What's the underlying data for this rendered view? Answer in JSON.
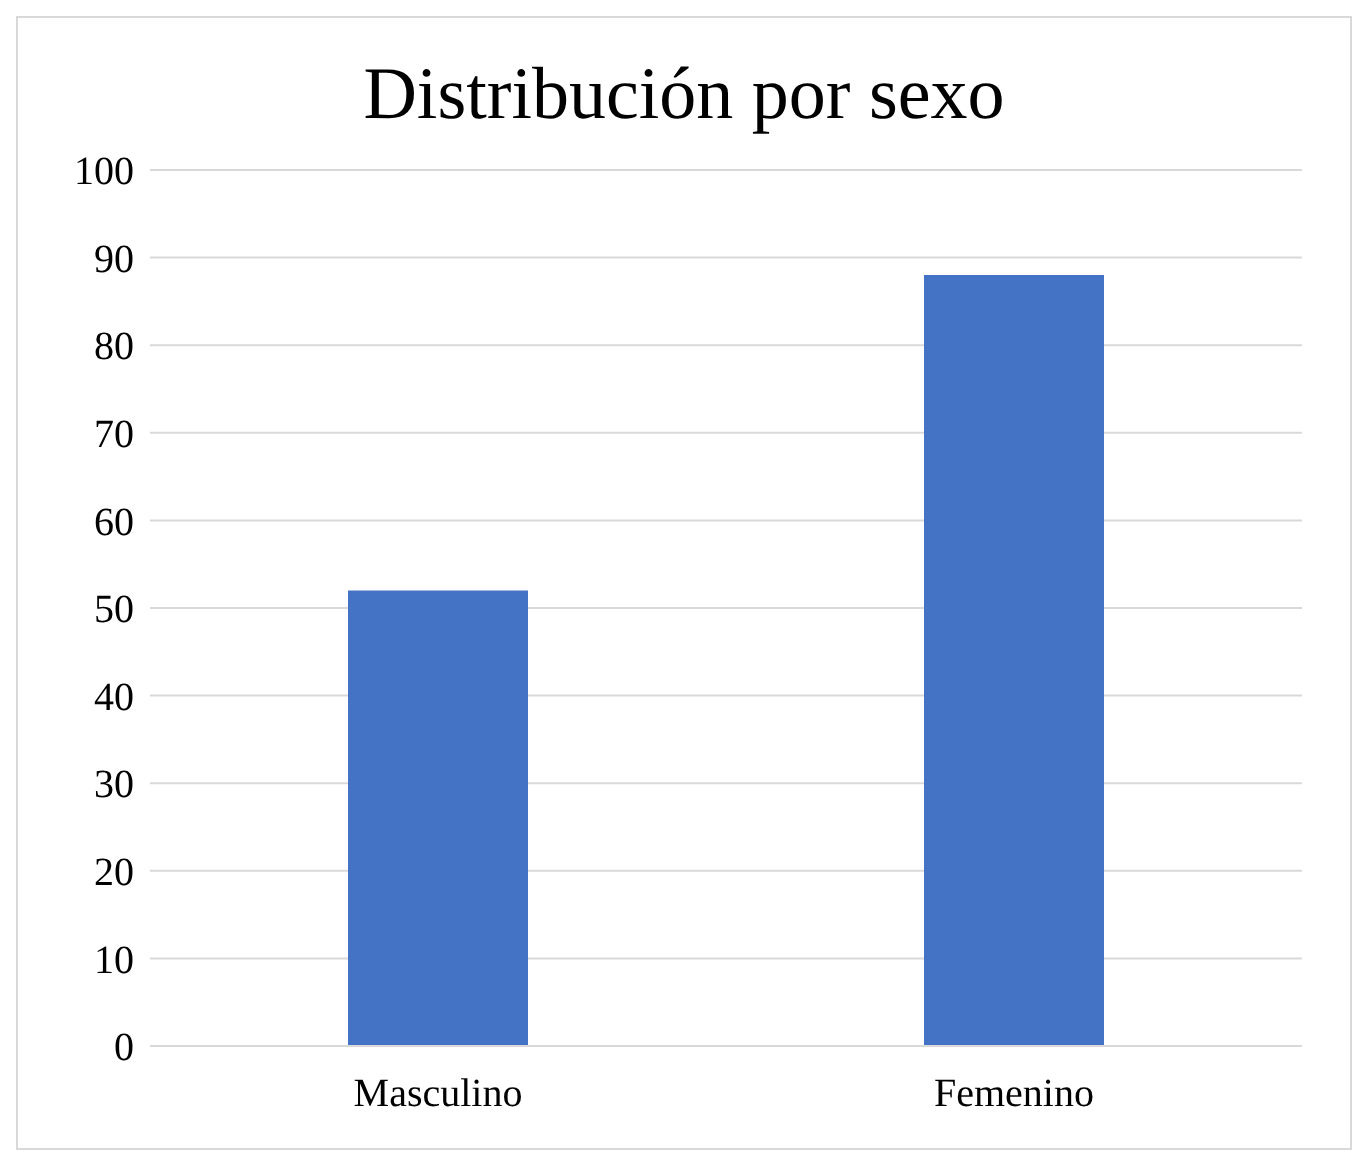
{
  "chart_data": {
    "type": "bar",
    "title": "Distribución por sexo",
    "categories": [
      "Masculino",
      "Femenino"
    ],
    "values": [
      52,
      88
    ],
    "color": "#4472c4",
    "ylim": [
      0,
      100
    ],
    "yticks": [
      0,
      10,
      20,
      30,
      40,
      50,
      60,
      70,
      80,
      90,
      100
    ],
    "grid": "y"
  }
}
